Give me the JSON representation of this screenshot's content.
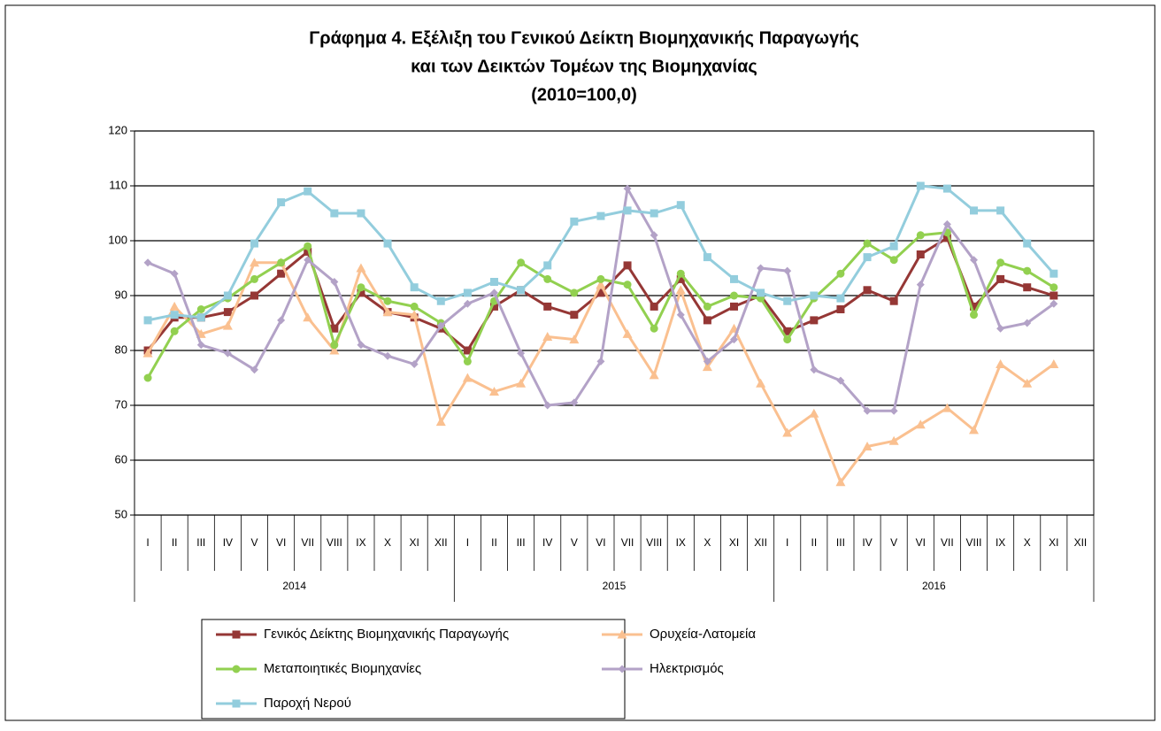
{
  "chart_data": {
    "type": "line",
    "title": "Γράφημα 4. Εξέλιξη του Γενικού Δείκτη Βιομηχανικής Παραγωγής",
    "subtitle": "και των Δεικτών Τομέων της Βιομηχανίας",
    "subtitle2": "(2010=100,0)",
    "categories": [
      "I",
      "II",
      "III",
      "IV",
      "V",
      "VI",
      "VII",
      "VIII",
      "IX",
      "X",
      "XI",
      "XII",
      "I",
      "II",
      "III",
      "IV",
      "V",
      "VI",
      "VII",
      "VIII",
      "IX",
      "X",
      "XI",
      "XII",
      "I",
      "II",
      "III",
      "IV",
      "V",
      "VI",
      "VII",
      "VIII",
      "IX",
      "X",
      "XI",
      "XII"
    ],
    "groups": [
      "2014",
      "2015",
      "2016"
    ],
    "ylim": [
      50,
      120
    ],
    "yticks": [
      50,
      60,
      70,
      80,
      90,
      100,
      110,
      120
    ],
    "grid": true,
    "legend": "bottom",
    "series": [
      {
        "name": "Γενικός Δείκτης Βιομηχανικής Παραγωγής",
        "color": "#953735",
        "marker": "square",
        "values": [
          80,
          86,
          86,
          87,
          90,
          94,
          98,
          84,
          90.5,
          87,
          86,
          84,
          80,
          88,
          91,
          88,
          86.5,
          90.5,
          95.5,
          88,
          93,
          85.5,
          88,
          90,
          83.5,
          85.5,
          87.5,
          91,
          89,
          97.5,
          100.5,
          88,
          93,
          91.5,
          90,
          null
        ]
      },
      {
        "name": "Ορυχεία-Λατομεία",
        "color": "#fac090",
        "marker": "triangle",
        "values": [
          79.5,
          88,
          83,
          84.5,
          96,
          96,
          86,
          80,
          95,
          87,
          86.5,
          67,
          75,
          72.5,
          74,
          82.5,
          82,
          92,
          83,
          75.5,
          91,
          77,
          84,
          74,
          65,
          68.5,
          56,
          62.5,
          63.5,
          66.5,
          69.5,
          65.5,
          77.5,
          74,
          77.5,
          null
        ]
      },
      {
        "name": "Μεταποιητικές Βιομηχανίες",
        "color": "#92d050",
        "marker": "circle",
        "values": [
          75,
          83.5,
          87.5,
          89.5,
          93,
          96,
          99,
          81,
          91.5,
          89,
          88,
          85,
          78,
          89,
          96,
          93,
          90.5,
          93,
          92,
          84,
          94,
          88,
          90,
          89.5,
          82,
          89.5,
          94,
          99.5,
          96.5,
          101,
          101.5,
          86.5,
          96,
          94.5,
          91.5,
          null
        ]
      },
      {
        "name": "Ηλεκτρισμός",
        "color": "#b3a2c7",
        "marker": "diamond",
        "values": [
          96,
          94,
          81,
          79.5,
          76.5,
          85.5,
          96.5,
          92.5,
          81,
          79,
          77.5,
          84.5,
          88.5,
          90.5,
          79.5,
          70,
          70.5,
          78,
          109.5,
          101,
          86.5,
          78,
          82,
          95,
          94.5,
          76.5,
          74.5,
          69,
          69,
          92,
          103,
          96.5,
          84,
          85,
          88.5,
          null
        ]
      },
      {
        "name": "Παροχή Νερού",
        "color": "#93cddd",
        "marker": "square",
        "values": [
          85.5,
          86.5,
          86,
          90,
          99.5,
          107,
          109,
          105,
          105,
          99.5,
          91.5,
          89,
          90.5,
          92.5,
          91,
          95.5,
          103.5,
          104.5,
          105.5,
          105,
          106.5,
          97,
          93,
          90.5,
          89,
          90,
          89.5,
          97,
          99,
          110,
          109.5,
          105.5,
          105.5,
          99.5,
          94,
          null
        ]
      }
    ]
  }
}
